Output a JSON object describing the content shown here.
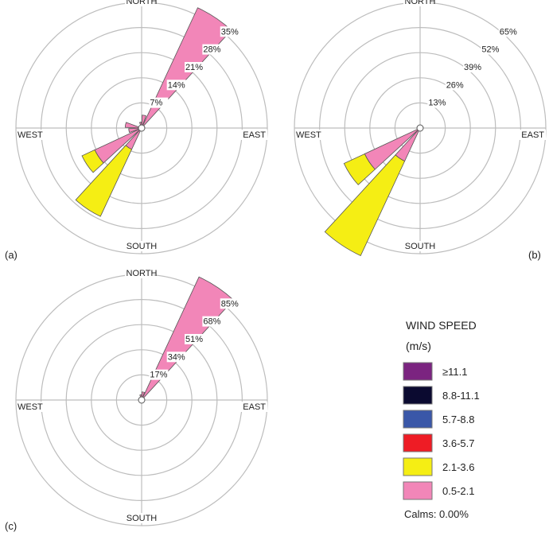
{
  "chart_data": [
    {
      "type": "wind-rose",
      "panel_label": "(a)",
      "directions": [
        "NORTH",
        "EAST",
        "SOUTH",
        "WEST"
      ],
      "radial_ticks": [
        "7%",
        "14%",
        "21%",
        "28%",
        "35%"
      ],
      "radial_max": 35,
      "petals": [
        {
          "direction_deg": 33.75,
          "bins": {
            "0.5-2.1": 37
          }
        },
        {
          "direction_deg": 11.25,
          "bins": {
            "0.5-2.1": 3
          }
        },
        {
          "direction_deg": 348.75,
          "bins": {
            "0.5-2.1": 1
          }
        },
        {
          "direction_deg": 281.25,
          "bins": {
            "0.5-2.1": 4
          }
        },
        {
          "direction_deg": 258.75,
          "bins": {
            "0.5-2.1": 3
          }
        },
        {
          "direction_deg": 236.25,
          "bins": {
            "0.5-2.1": 14,
            "2.1-3.6": 4
          }
        },
        {
          "direction_deg": 213.75,
          "bins": {
            "0.5-2.1": 6,
            "2.1-3.6": 21
          }
        }
      ]
    },
    {
      "type": "wind-rose",
      "panel_label": "(b)",
      "directions": [
        "NORTH",
        "EAST",
        "SOUTH",
        "WEST"
      ],
      "radial_ticks": [
        "13%",
        "26%",
        "39%",
        "52%",
        "65%"
      ],
      "radial_max": 65,
      "petals": [
        {
          "direction_deg": 236.25,
          "bins": {
            "0.5-2.1": 31,
            "2.1-3.6": 12
          }
        },
        {
          "direction_deg": 213.75,
          "bins": {
            "0.5-2.1": 18,
            "2.1-3.6": 55
          }
        }
      ]
    },
    {
      "type": "wind-rose",
      "panel_label": "(c)",
      "directions": [
        "NORTH",
        "EAST",
        "SOUTH",
        "WEST"
      ],
      "radial_ticks": [
        "17%",
        "34%",
        "51%",
        "68%",
        "85%"
      ],
      "radial_max": 85,
      "petals": [
        {
          "direction_deg": 33.75,
          "bins": {
            "0.5-2.1": 92
          }
        },
        {
          "direction_deg": 11.25,
          "bins": {
            "0.5-2.1": 4
          }
        },
        {
          "direction_deg": 348.75,
          "bins": {
            "0.5-2.1": 2
          }
        }
      ]
    }
  ],
  "legend": {
    "title": "WIND SPEED",
    "unit": "(m/s)",
    "items": [
      {
        "label": "≥11.1",
        "color": "#7b2480"
      },
      {
        "label": "8.8-11.1",
        "color": "#0b0a30"
      },
      {
        "label": "5.7-8.8",
        "color": "#3a57a8"
      },
      {
        "label": "3.6-5.7",
        "color": "#ee1c25"
      },
      {
        "label": "2.1-3.6",
        "color": "#f5ee14"
      },
      {
        "label": "0.5-2.1",
        "color": "#f286b8"
      }
    ],
    "calms": "Calms: 0.00%"
  }
}
